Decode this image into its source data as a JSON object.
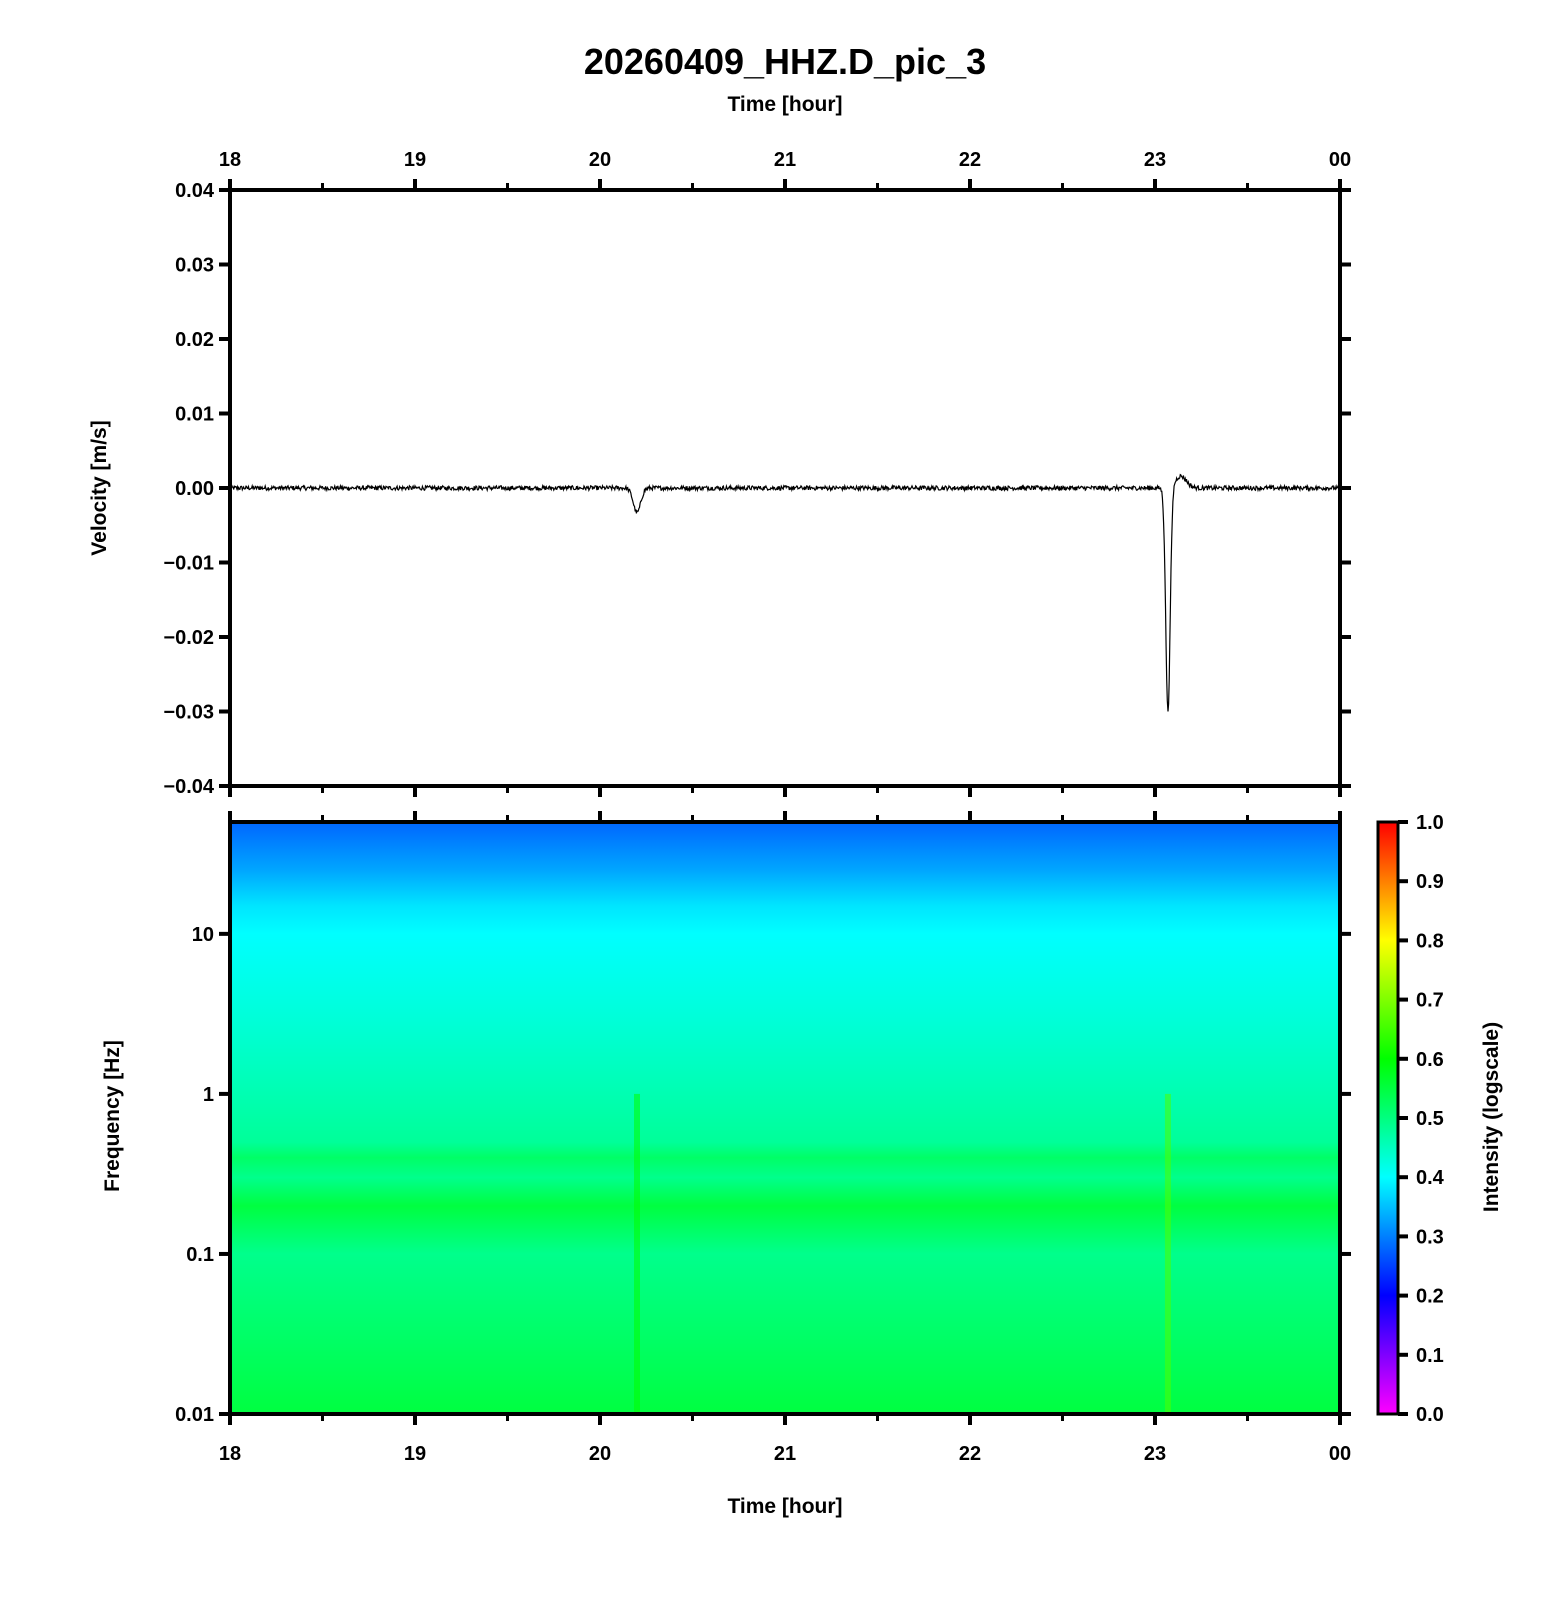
{
  "chart_data": [
    {
      "type": "line",
      "title": "20260409_HHZ.D_pic_3",
      "xlabel": "Time [hour]",
      "ylabel": "Velocity [m/s]",
      "x_tick_labels": [
        "18",
        "19",
        "20",
        "21",
        "22",
        "23",
        "00"
      ],
      "x_ticks_hours": [
        18,
        19,
        20,
        21,
        22,
        23,
        24
      ],
      "xlim_hours": [
        18,
        24
      ],
      "ylim": [
        -0.04,
        0.04
      ],
      "y_ticks": [
        0.04,
        0.03,
        0.02,
        0.01,
        0.0,
        -0.01,
        -0.02,
        -0.03,
        -0.04
      ],
      "y_tick_labels": [
        "0.04",
        "0.03",
        "0.02",
        "0.01",
        "0.00",
        "−0.01",
        "−0.02",
        "−0.03",
        "−0.04"
      ],
      "line_color": "#000000",
      "baseline_noise_amplitude": 0.0003,
      "events": [
        {
          "time_hour": 20.2,
          "min_velocity": -0.0033
        },
        {
          "time_hour": 23.07,
          "min_velocity": -0.03,
          "overshoot_velocity": 0.0016
        }
      ]
    },
    {
      "type": "heatmap",
      "xlabel": "Time [hour]",
      "ylabel": "Frequency [Hz]",
      "x_tick_labels": [
        "18",
        "19",
        "20",
        "21",
        "22",
        "23",
        "00"
      ],
      "x_ticks_hours": [
        18,
        19,
        20,
        21,
        22,
        23,
        24
      ],
      "xlim_hours": [
        18,
        24
      ],
      "y_scale": "log",
      "ylim": [
        0.01,
        50
      ],
      "y_ticks": [
        10,
        1,
        0.1,
        0.01
      ],
      "y_tick_labels": [
        "10",
        "1",
        "0.1",
        "0.01"
      ],
      "colorbar": {
        "label": "Intensity (logscale)",
        "range": [
          0.0,
          1.0
        ],
        "tick_labels": [
          "1.0",
          "0.9",
          "0.8",
          "0.7",
          "0.6",
          "0.5",
          "0.4",
          "0.3",
          "0.2",
          "0.1",
          "0.0"
        ],
        "colors": [
          "#ff00ff",
          "#0000ff",
          "#00ffff",
          "#00ff00",
          "#ffff00",
          "#ff0000"
        ]
      },
      "intensity_by_frequency": [
        {
          "freq_hz": 50,
          "intensity": 0.28
        },
        {
          "freq_hz": 25,
          "intensity": 0.33
        },
        {
          "freq_hz": 15,
          "intensity": 0.38
        },
        {
          "freq_hz": 10,
          "intensity": 0.4
        },
        {
          "freq_hz": 3,
          "intensity": 0.43
        },
        {
          "freq_hz": 1,
          "intensity": 0.46
        },
        {
          "freq_hz": 0.5,
          "intensity": 0.48
        },
        {
          "freq_hz": 0.4,
          "intensity": 0.52
        },
        {
          "freq_hz": 0.3,
          "intensity": 0.49
        },
        {
          "freq_hz": 0.2,
          "intensity": 0.55
        },
        {
          "freq_hz": 0.1,
          "intensity": 0.49
        },
        {
          "freq_hz": 0.03,
          "intensity": 0.52
        },
        {
          "freq_hz": 0.01,
          "intensity": 0.55
        }
      ],
      "hot_columns": [
        {
          "time_hour": 23.07,
          "intensity": 0.66
        },
        {
          "time_hour": 20.2,
          "intensity": 0.6
        }
      ]
    }
  ]
}
